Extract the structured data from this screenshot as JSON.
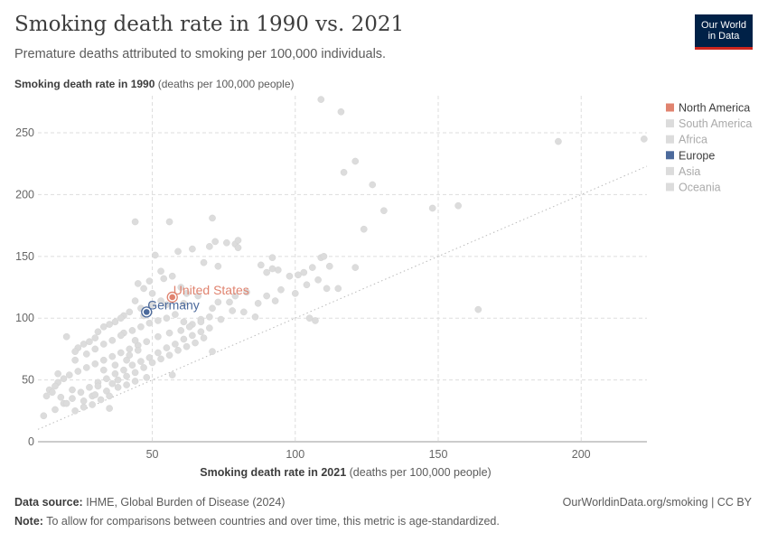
{
  "header": {
    "title": "Smoking death rate in 1990 vs. 2021",
    "subtitle": "Premature deaths attributed to smoking per 100,000 individuals.",
    "logo_line1": "Our World",
    "logo_line2": "in Data"
  },
  "axes": {
    "y_title": "Smoking death rate in 1990",
    "y_unit": "(deaths per 100,000 people)",
    "x_title": "Smoking death rate in 2021",
    "x_unit": "(deaths per 100,000 people)"
  },
  "footer": {
    "source_label": "Data source:",
    "source_text": "IHME, Global Burden of Disease (2024)",
    "url": "OurWorldinData.org/smoking | CC BY",
    "note_label": "Note:",
    "note_text": "To allow for comparisons between countries and over time, this metric is age-standardized."
  },
  "colors": {
    "north_america": "#e0836f",
    "europe": "#4c6a9c",
    "muted": "#dcdcdc",
    "grid": "#dddddd",
    "diagonal": "#bbbbbb"
  },
  "chart_data": {
    "type": "scatter",
    "xlabel": "Smoking death rate in 2021",
    "ylabel": "Smoking death rate in 1990",
    "xlim": [
      10,
      223
    ],
    "ylim": [
      0,
      280
    ],
    "x_ticks": [
      50,
      100,
      150,
      200
    ],
    "y_ticks": [
      0,
      50,
      100,
      150,
      200,
      250
    ],
    "grid": true,
    "legend_position": "right",
    "reference_line": "y = x",
    "legend": [
      {
        "name": "North America",
        "color": "#e0836f",
        "active": true
      },
      {
        "name": "South America",
        "color": "#dcdcdc",
        "active": false
      },
      {
        "name": "Africa",
        "color": "#dcdcdc",
        "active": false
      },
      {
        "name": "Europe",
        "color": "#4c6a9c",
        "active": true
      },
      {
        "name": "Asia",
        "color": "#dcdcdc",
        "active": false
      },
      {
        "name": "Oceania",
        "color": "#dcdcdc",
        "active": false
      }
    ],
    "highlighted": [
      {
        "label": "United States",
        "x": 57,
        "y": 117,
        "color": "#e0836f"
      },
      {
        "label": "Germany",
        "x": 48,
        "y": 105,
        "color": "#4c6a9c"
      }
    ],
    "points": [
      [
        109,
        277
      ],
      [
        116,
        267
      ],
      [
        121,
        227
      ],
      [
        117,
        218
      ],
      [
        127,
        208
      ],
      [
        192,
        243
      ],
      [
        222,
        245
      ],
      [
        157,
        191
      ],
      [
        148,
        189
      ],
      [
        131,
        187
      ],
      [
        124,
        172
      ],
      [
        121,
        141
      ],
      [
        44,
        178
      ],
      [
        56,
        178
      ],
      [
        71,
        181
      ],
      [
        70,
        158
      ],
      [
        72,
        162
      ],
      [
        64,
        156
      ],
      [
        59,
        154
      ],
      [
        51,
        151
      ],
      [
        53,
        138
      ],
      [
        54,
        132
      ],
      [
        49,
        130
      ],
      [
        68,
        145
      ],
      [
        73,
        142
      ],
      [
        76,
        161
      ],
      [
        79,
        160
      ],
      [
        80,
        163
      ],
      [
        80,
        157
      ],
      [
        88,
        143
      ],
      [
        90,
        137
      ],
      [
        92,
        149
      ],
      [
        92,
        140
      ],
      [
        94,
        139
      ],
      [
        98,
        134
      ],
      [
        101,
        135
      ],
      [
        103,
        137
      ],
      [
        104,
        127
      ],
      [
        106,
        141
      ],
      [
        109,
        149
      ],
      [
        110,
        150
      ],
      [
        112,
        142
      ],
      [
        108,
        131
      ],
      [
        111,
        124
      ],
      [
        115,
        124
      ],
      [
        100,
        120
      ],
      [
        95,
        123
      ],
      [
        93,
        114
      ],
      [
        90,
        118
      ],
      [
        87,
        112
      ],
      [
        83,
        121
      ],
      [
        79,
        118
      ],
      [
        77,
        113
      ],
      [
        73,
        113
      ],
      [
        71,
        108
      ],
      [
        66,
        118
      ],
      [
        62,
        120
      ],
      [
        60,
        125
      ],
      [
        57,
        134
      ],
      [
        61,
        112
      ],
      [
        55,
        111
      ],
      [
        50,
        120
      ],
      [
        47,
        124
      ],
      [
        45,
        128
      ],
      [
        44,
        114
      ],
      [
        42,
        105
      ],
      [
        40,
        102
      ],
      [
        39,
        100
      ],
      [
        37,
        97
      ],
      [
        35,
        95
      ],
      [
        33,
        93
      ],
      [
        31,
        89
      ],
      [
        30,
        84
      ],
      [
        28,
        81
      ],
      [
        26,
        79
      ],
      [
        24,
        76
      ],
      [
        23,
        73
      ],
      [
        40,
        88
      ],
      [
        43,
        90
      ],
      [
        46,
        93
      ],
      [
        49,
        96
      ],
      [
        52,
        98
      ],
      [
        55,
        100
      ],
      [
        58,
        103
      ],
      [
        61,
        97
      ],
      [
        64,
        95
      ],
      [
        67,
        99
      ],
      [
        70,
        101
      ],
      [
        74,
        99
      ],
      [
        78,
        106
      ],
      [
        82,
        105
      ],
      [
        86,
        101
      ],
      [
        56,
        88
      ],
      [
        52,
        85
      ],
      [
        48,
        81
      ],
      [
        45,
        78
      ],
      [
        42,
        75
      ],
      [
        39,
        72
      ],
      [
        36,
        69
      ],
      [
        33,
        66
      ],
      [
        30,
        63
      ],
      [
        27,
        60
      ],
      [
        24,
        57
      ],
      [
        21,
        54
      ],
      [
        19,
        51
      ],
      [
        17,
        48
      ],
      [
        16,
        45
      ],
      [
        14,
        42
      ],
      [
        13,
        37
      ],
      [
        12,
        21
      ],
      [
        16,
        26
      ],
      [
        19,
        31
      ],
      [
        22,
        35
      ],
      [
        25,
        40
      ],
      [
        28,
        44
      ],
      [
        31,
        48
      ],
      [
        34,
        51
      ],
      [
        37,
        55
      ],
      [
        40,
        58
      ],
      [
        43,
        62
      ],
      [
        46,
        65
      ],
      [
        49,
        68
      ],
      [
        52,
        72
      ],
      [
        55,
        76
      ],
      [
        58,
        79
      ],
      [
        61,
        83
      ],
      [
        64,
        86
      ],
      [
        67,
        89
      ],
      [
        70,
        92
      ],
      [
        20,
        85
      ],
      [
        22,
        42
      ],
      [
        26,
        33
      ],
      [
        29,
        37
      ],
      [
        31,
        45
      ],
      [
        34,
        41
      ],
      [
        36,
        47
      ],
      [
        38,
        50
      ],
      [
        41,
        53
      ],
      [
        44,
        56
      ],
      [
        47,
        60
      ],
      [
        50,
        64
      ],
      [
        53,
        67
      ],
      [
        56,
        70
      ],
      [
        59,
        74
      ],
      [
        62,
        77
      ],
      [
        65,
        80
      ],
      [
        68,
        84
      ],
      [
        71,
        73
      ],
      [
        57,
        54
      ],
      [
        48,
        52
      ],
      [
        44,
        49
      ],
      [
        41,
        46
      ],
      [
        38,
        44
      ],
      [
        35,
        37
      ],
      [
        32,
        34
      ],
      [
        29,
        30
      ],
      [
        26,
        28
      ],
      [
        23,
        25
      ],
      [
        20,
        31
      ],
      [
        18,
        36
      ],
      [
        15,
        40
      ],
      [
        17,
        55
      ],
      [
        23,
        66
      ],
      [
        27,
        71
      ],
      [
        30,
        75
      ],
      [
        33,
        79
      ],
      [
        36,
        82
      ],
      [
        39,
        86
      ],
      [
        42,
        70
      ],
      [
        45,
        74
      ],
      [
        60,
        90
      ],
      [
        63,
        93
      ],
      [
        67,
        97
      ],
      [
        46,
        108
      ],
      [
        47,
        102
      ],
      [
        50,
        111
      ],
      [
        53,
        114
      ],
      [
        164,
        107
      ],
      [
        105,
        100
      ],
      [
        107,
        98
      ],
      [
        30,
        38
      ],
      [
        33,
        58
      ],
      [
        37,
        62
      ],
      [
        41,
        66
      ],
      [
        44,
        82
      ],
      [
        35,
        27
      ]
    ]
  }
}
